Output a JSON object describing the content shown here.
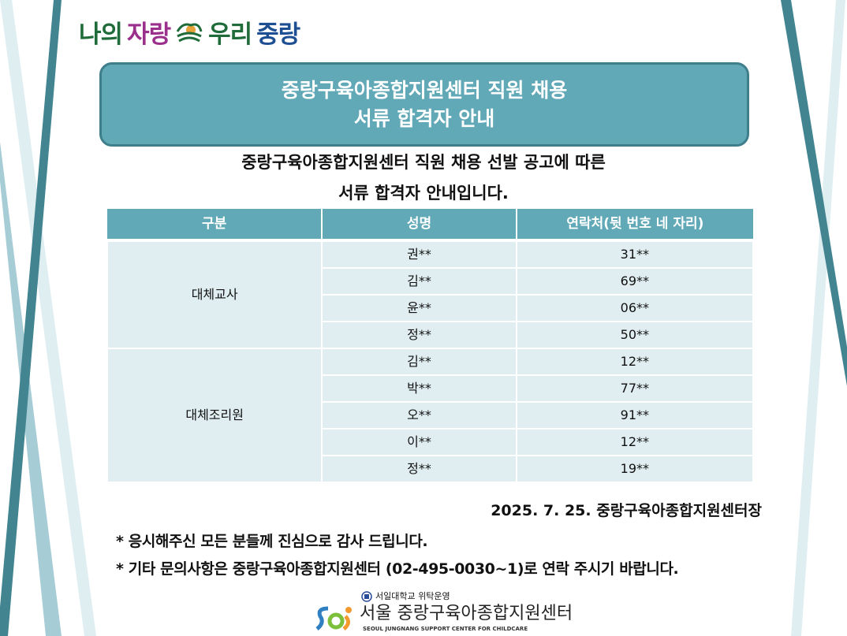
{
  "logo_top": {
    "part1": "나의",
    "part2": "자랑",
    "part3": "우리",
    "part4": "중랑"
  },
  "title": {
    "line1": "중랑구육아종합지원센터 직원 채용",
    "line2": "서류 합격자 안내"
  },
  "intro": {
    "line1": "중랑구육아종합지원센터 직원 채용 선발 공고에 따른",
    "line2": "서류 합격자 안내입니다."
  },
  "table": {
    "headers": [
      "구분",
      "성명",
      "연락처(뒷 번호 네 자리)"
    ],
    "groups": [
      {
        "category": "대체교사",
        "rows": [
          {
            "name": "권**",
            "phone": "31**"
          },
          {
            "name": "김**",
            "phone": "69**"
          },
          {
            "name": "윤**",
            "phone": "06**"
          },
          {
            "name": "정**",
            "phone": "50**"
          }
        ]
      },
      {
        "category": "대체조리원",
        "rows": [
          {
            "name": "김**",
            "phone": "12**"
          },
          {
            "name": "박**",
            "phone": "77**"
          },
          {
            "name": "오**",
            "phone": "91**"
          },
          {
            "name": "이**",
            "phone": "12**"
          },
          {
            "name": "정**",
            "phone": "19**"
          }
        ]
      }
    ]
  },
  "date_signature": "2025. 7. 25. 중랑구육아종합지원센터장",
  "notes": [
    "* 응시해주신 모든 분들께 진심으로 감사 드립니다.",
    "* 기타 문의사항은 중랑구육아종합지원센터 (02-495-0030~1)로 연락 주시기 바랍니다."
  ],
  "bottom_logo": {
    "sub": "서일대학교 위탁운영",
    "main": "서울 중랑구육아종합지원센터",
    "en": "SEOUL JUNGNANG SUPPORT CENTER FOR CHILDCARE"
  },
  "colors": {
    "teal": "#62a9b7",
    "dark_teal": "#3f7f8c",
    "cell": "#e0eef2"
  }
}
